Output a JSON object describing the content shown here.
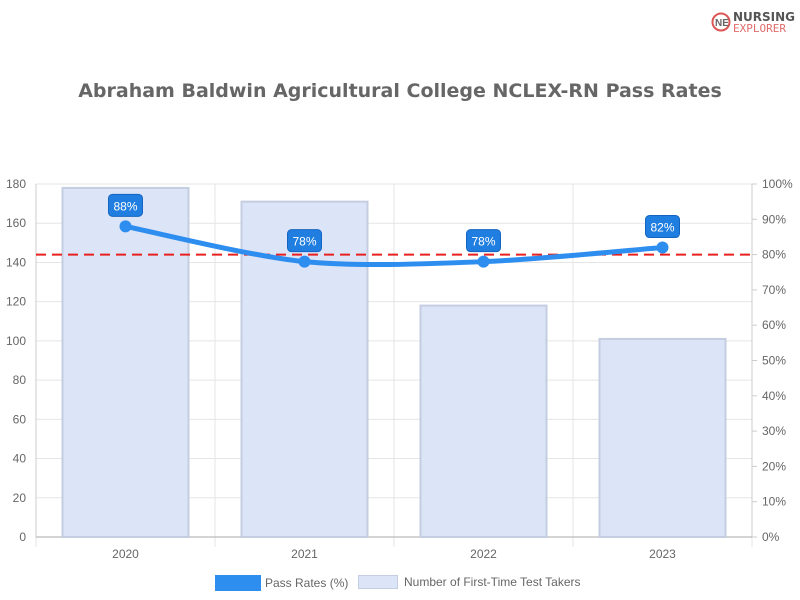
{
  "logo": {
    "line1": "NURSING",
    "line2": "EXPLORER"
  },
  "chart_data": {
    "type": "bar+line",
    "title": "Abraham Baldwin Agricultural College NCLEX-RN Pass Rates",
    "categories": [
      "2020",
      "2021",
      "2022",
      "2023"
    ],
    "series": [
      {
        "name": "Pass Rates (%)",
        "type": "line",
        "axis": "right",
        "values": [
          88,
          78,
          78,
          82
        ],
        "labels": [
          "88%",
          "78%",
          "78%",
          "82%"
        ],
        "color": "#2e8ef0"
      },
      {
        "name": "Number of First-Time Test Takers",
        "type": "bar",
        "axis": "left",
        "values": [
          178,
          171,
          118,
          101
        ],
        "color": "#dce4f7"
      }
    ],
    "reference_line": {
      "value": 80,
      "axis": "right",
      "color": "#e8201e",
      "style": "dashed"
    },
    "y_left": {
      "range": [
        0,
        180
      ],
      "ticks": [
        "0",
        "20",
        "40",
        "60",
        "80",
        "100",
        "120",
        "140",
        "160",
        "180"
      ]
    },
    "y_right": {
      "range": [
        0,
        100
      ],
      "ticks": [
        "0%",
        "10%",
        "20%",
        "30%",
        "40%",
        "50%",
        "60%",
        "70%",
        "80%",
        "90%",
        "100%"
      ]
    },
    "grid": true,
    "legend": "bottom"
  }
}
